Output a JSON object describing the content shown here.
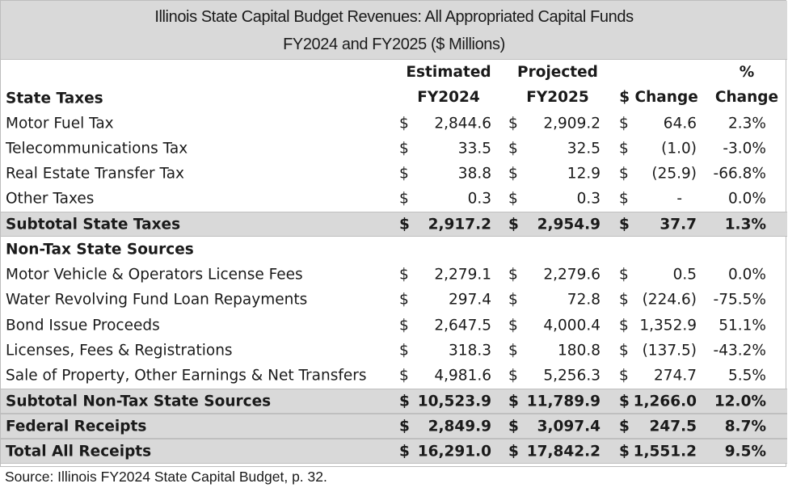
{
  "title": {
    "line1": "Illinois State Capital Budget Revenues: All Appropriated Capital Funds",
    "line2": "FY2024 and FY2025  ($ Millions)"
  },
  "headers": {
    "est_top": "Estimated",
    "est_bottom": "FY2024",
    "proj_top": "Projected",
    "proj_bottom": "FY2025",
    "change": "$ Change",
    "pct_top": "%",
    "pct_bottom": "Change"
  },
  "sections": {
    "state_taxes": "State Taxes",
    "non_tax": "Non-Tax State Sources"
  },
  "rows": [
    {
      "label": "Motor Fuel Tax",
      "d1": "$",
      "fy24": "2,844.6",
      "d2": "$",
      "fy25": "2,909.2",
      "d3": "$",
      "change": "64.6",
      "pct": "2.3%"
    },
    {
      "label": "Telecommunications Tax",
      "d1": "$",
      "fy24": "33.5",
      "d2": "$",
      "fy25": "32.5",
      "d3": "$",
      "change": "(1.0)",
      "pct": "-3.0%"
    },
    {
      "label": "Real Estate Transfer Tax",
      "d1": "$",
      "fy24": "38.8",
      "d2": "$",
      "fy25": "12.9",
      "d3": "$",
      "change": "(25.9)",
      "pct": "-66.8%"
    },
    {
      "label": "Other Taxes",
      "d1": "$",
      "fy24": "0.3",
      "d2": "$",
      "fy25": "0.3",
      "d3": "$",
      "change": "-",
      "pct": "0.0%"
    },
    {
      "label": "Subtotal State Taxes",
      "d1": "$",
      "fy24": "2,917.2",
      "d2": "$",
      "fy25": "2,954.9",
      "d3": "$",
      "change": "37.7",
      "pct": "1.3%"
    },
    {
      "label": "Motor Vehicle & Operators License Fees",
      "d1": "$",
      "fy24": "2,279.1",
      "d2": "$",
      "fy25": "2,279.6",
      "d3": "$",
      "change": "0.5",
      "pct": "0.0%"
    },
    {
      "label": "Water Revolving Fund Loan Repayments",
      "d1": "$",
      "fy24": "297.4",
      "d2": "$",
      "fy25": "72.8",
      "d3": "$",
      "change": "(224.6)",
      "pct": "-75.5%"
    },
    {
      "label": "Bond Issue Proceeds",
      "d1": "$",
      "fy24": "2,647.5",
      "d2": "$",
      "fy25": "4,000.4",
      "d3": "$",
      "change": "1,352.9",
      "pct": "51.1%"
    },
    {
      "label": "Licenses, Fees & Registrations",
      "d1": "$",
      "fy24": "318.3",
      "d2": "$",
      "fy25": "180.8",
      "d3": "$",
      "change": "(137.5)",
      "pct": "-43.2%"
    },
    {
      "label": "Sale of Property, Other Earnings & Net Transfers",
      "d1": "$",
      "fy24": "4,981.6",
      "d2": "$",
      "fy25": "5,256.3",
      "d3": "$",
      "change": "274.7",
      "pct": "5.5%"
    },
    {
      "label": "Subtotal Non-Tax State Sources",
      "d1": "$",
      "fy24": "10,523.9",
      "d2": "$",
      "fy25": "11,789.9",
      "d3": "$",
      "change": "1,266.0",
      "pct": "12.0%"
    },
    {
      "label": "Federal Receipts",
      "d1": "$",
      "fy24": "2,849.9",
      "d2": "$",
      "fy25": "3,097.4",
      "d3": "$",
      "change": "247.5",
      "pct": "8.7%"
    },
    {
      "label": "Total All Receipts",
      "d1": "$",
      "fy24": "16,291.0",
      "d2": "$",
      "fy25": "17,842.2",
      "d3": "$",
      "change": "1,551.2",
      "pct": "9.5%"
    }
  ],
  "source": "Source:  Illinois FY2024 State Capital Budget, p. 32."
}
